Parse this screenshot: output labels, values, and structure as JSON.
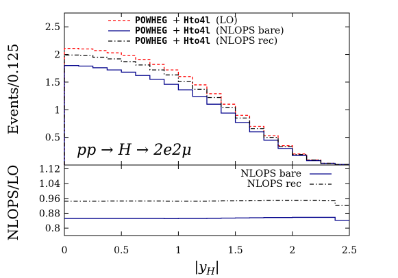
{
  "chart_data": [
    {
      "type": "line",
      "style": "histogram-step",
      "x_edges": [
        0,
        0.125,
        0.25,
        0.375,
        0.5,
        0.625,
        0.75,
        0.875,
        1.0,
        1.125,
        1.25,
        1.375,
        1.5,
        1.625,
        1.75,
        1.875,
        2.0,
        2.125,
        2.25,
        2.375,
        2.5
      ],
      "ylabel": "Events/0.125",
      "ylim": [
        0,
        2.75
      ],
      "yticks": [
        "0.5",
        "1",
        "1.5",
        "2",
        "2.5"
      ],
      "annotation": "pp → H → 2e2μ",
      "legend_position": "top",
      "series": [
        {
          "name_mono": "POWHEG",
          "name_mid": "+",
          "name_mono2": "Hto4l",
          "name_tail": "(LO)",
          "color": "#ff0000",
          "dash": "dashed",
          "values": [
            2.11,
            2.1,
            2.07,
            2.03,
            1.98,
            1.91,
            1.82,
            1.72,
            1.6,
            1.45,
            1.29,
            1.1,
            0.9,
            0.7,
            0.53,
            0.35,
            0.2,
            0.09,
            0.03,
            0.01
          ]
        },
        {
          "name_mono": "POWHEG",
          "name_mid": "+",
          "name_mono2": "Hto4l",
          "name_tail": "(NLOPS bare)",
          "color": "#00008b",
          "dash": "solid",
          "values": [
            1.8,
            1.79,
            1.76,
            1.72,
            1.68,
            1.62,
            1.55,
            1.46,
            1.36,
            1.24,
            1.1,
            0.94,
            0.77,
            0.6,
            0.45,
            0.3,
            0.17,
            0.08,
            0.03,
            0.01
          ]
        },
        {
          "name_mono": "POWHEG",
          "name_mid": "+",
          "name_mono2": "Hto4l",
          "name_tail": "(NLOPS rec)",
          "color": "#000000",
          "dash": "dashdot",
          "values": [
            1.99,
            1.98,
            1.95,
            1.92,
            1.87,
            1.81,
            1.72,
            1.63,
            1.51,
            1.37,
            1.22,
            1.04,
            0.85,
            0.66,
            0.5,
            0.33,
            0.19,
            0.09,
            0.03,
            0.01
          ]
        }
      ]
    },
    {
      "type": "line",
      "style": "histogram-step",
      "x_edges": [
        0,
        0.125,
        0.25,
        0.375,
        0.5,
        0.625,
        0.75,
        0.875,
        1.0,
        1.125,
        1.25,
        1.375,
        1.5,
        1.625,
        1.75,
        1.875,
        2.0,
        2.125,
        2.25,
        2.375,
        2.5
      ],
      "xlabel": "|y_H|",
      "ylabel": "NLOPS/LO",
      "xlim": [
        0,
        2.5
      ],
      "ylim": [
        0.76,
        1.14
      ],
      "xticks": [
        "0",
        "0.5",
        "1",
        "1.5",
        "2",
        "2.5"
      ],
      "yticks": [
        "0.8",
        "0.88",
        "0.96",
        "1.04",
        "1.12"
      ],
      "legend_position": "top-right",
      "series": [
        {
          "name": "NLOPS bare",
          "color": "#00008b",
          "dash": "solid",
          "values": [
            0.852,
            0.852,
            0.852,
            0.852,
            0.852,
            0.852,
            0.852,
            0.851,
            0.852,
            0.852,
            0.853,
            0.854,
            0.855,
            0.856,
            0.857,
            0.857,
            0.858,
            0.858,
            0.858,
            0.842
          ]
        },
        {
          "name": "NLOPS rec",
          "color": "#000000",
          "dash": "dashdot",
          "values": [
            0.945,
            0.945,
            0.945,
            0.946,
            0.946,
            0.946,
            0.946,
            0.945,
            0.945,
            0.945,
            0.946,
            0.947,
            0.948,
            0.949,
            0.95,
            0.95,
            0.95,
            0.95,
            0.949,
            0.922
          ]
        }
      ]
    }
  ]
}
